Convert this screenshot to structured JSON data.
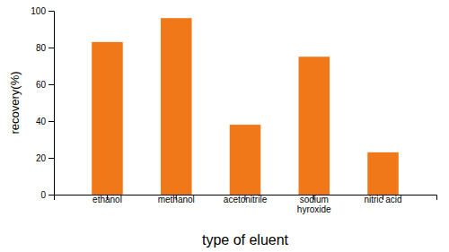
{
  "chart_data": {
    "type": "bar",
    "categories": [
      "ethanol",
      "methanol",
      "acetonitrile",
      "sodium\nhyroxide",
      "nitric acid"
    ],
    "values": [
      83,
      96,
      38,
      75,
      23
    ],
    "color": "#F07818",
    "xlabel": "type of eluent",
    "ylabel": "recovery(%)",
    "ylim": [
      0,
      100
    ],
    "yticks": [
      0,
      20,
      40,
      60,
      80,
      100
    ],
    "grid": false
  }
}
